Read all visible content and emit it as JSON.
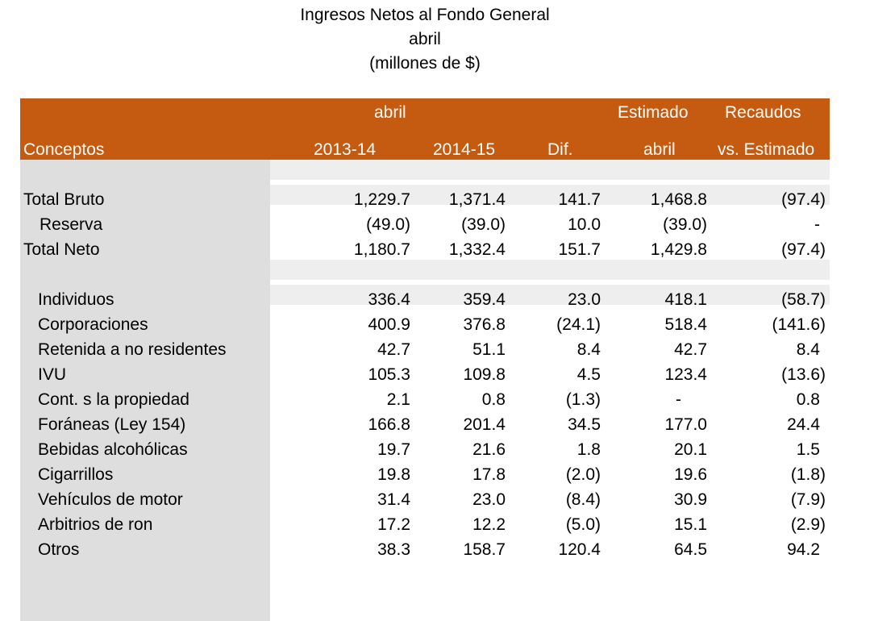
{
  "title": {
    "line1": "Ingresos Netos al Fondo General",
    "line2": "abril",
    "line3": "(millones de $)"
  },
  "header": {
    "group_abril": "abril",
    "estimado": "Estimado",
    "recaudos": "Recaudos",
    "conceptos": "Conceptos",
    "col_2013": "2013-14",
    "col_2014": "2014-15",
    "col_dif": "Dif.",
    "col_est_abril": "abril",
    "col_vs": "vs. Estimado"
  },
  "rows": [
    {
      "label": "Total Bruto",
      "v1": "1,229.7",
      "v2": "1,371.4",
      "v3": "141.7",
      "v4": "1,468.8",
      "v5": "(97.4)"
    },
    {
      "label": "Reserva",
      "v1": "(49.0)",
      "v2": "(39.0)",
      "v3": "10.0",
      "v4": "(39.0)",
      "v5": "-"
    },
    {
      "label": "Total Neto",
      "v1": "1,180.7",
      "v2": "1,332.4",
      "v3": "151.7",
      "v4": "1,429.8",
      "v5": "(97.4)"
    },
    {
      "label": "Individuos",
      "v1": "336.4",
      "v2": "359.4",
      "v3": "23.0",
      "v4": "418.1",
      "v5": "(58.7)"
    },
    {
      "label": "Corporaciones",
      "v1": "400.9",
      "v2": "376.8",
      "v3": "(24.1)",
      "v4": "518.4",
      "v5": "(141.6)"
    },
    {
      "label": "Retenida a no residentes",
      "v1": "42.7",
      "v2": "51.1",
      "v3": "8.4",
      "v4": "42.7",
      "v5": "8.4"
    },
    {
      "label": "IVU",
      "v1": "105.3",
      "v2": "109.8",
      "v3": "4.5",
      "v4": "123.4",
      "v5": "(13.6)"
    },
    {
      "label": "Cont. s la propiedad",
      "v1": "2.1",
      "v2": "0.8",
      "v3": "(1.3)",
      "v4": "-",
      "v5": "0.8"
    },
    {
      "label": "Foráneas (Ley 154)",
      "v1": "166.8",
      "v2": "201.4",
      "v3": "34.5",
      "v4": "177.0",
      "v5": "24.4"
    },
    {
      "label": "Bebidas alcohólicas",
      "v1": "19.7",
      "v2": "21.6",
      "v3": "1.8",
      "v4": "20.1",
      "v5": "1.5"
    },
    {
      "label": "Cigarrillos",
      "v1": "19.8",
      "v2": "17.8",
      "v3": "(2.0)",
      "v4": "19.6",
      "v5": "(1.8)"
    },
    {
      "label": "Vehículos de motor",
      "v1": "31.4",
      "v2": "23.0",
      "v3": "(8.4)",
      "v4": "30.9",
      "v5": "(7.9)"
    },
    {
      "label": "Arbitrios de ron",
      "v1": "17.2",
      "v2": "12.2",
      "v3": "(5.0)",
      "v4": "15.1",
      "v5": "(2.9)"
    },
    {
      "label": "Otros",
      "v1": "38.3",
      "v2": "158.7",
      "v3": "120.4",
      "v4": "64.5",
      "v5": "94.2"
    }
  ]
}
